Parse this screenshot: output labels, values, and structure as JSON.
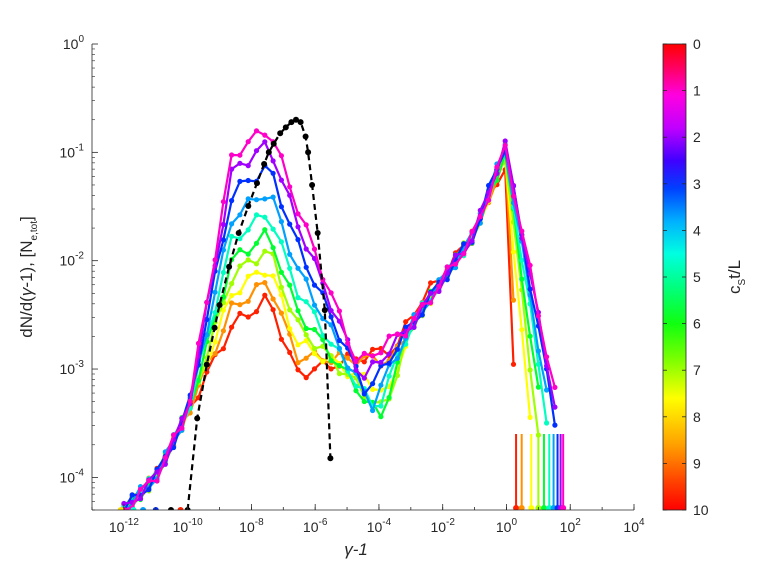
{
  "chart_data": {
    "type": "line",
    "xscale": "log",
    "yscale": "log",
    "xlim": [
      1e-13,
      10000
    ],
    "ylim": [
      5e-05,
      1
    ],
    "xlabel": "γ-1",
    "ylabel": "dN/d(γ-1), [N_e,tot]",
    "x_ticks": [
      {
        "base": "10",
        "exp": "-12",
        "value": 1e-12
      },
      {
        "base": "10",
        "exp": "-10",
        "value": 1e-10
      },
      {
        "base": "10",
        "exp": "-8",
        "value": 1e-08
      },
      {
        "base": "10",
        "exp": "-6",
        "value": 1e-06
      },
      {
        "base": "10",
        "exp": "-4",
        "value": 0.0001
      },
      {
        "base": "10",
        "exp": "-2",
        "value": 0.01
      },
      {
        "base": "10",
        "exp": "0",
        "value": 1
      },
      {
        "base": "10",
        "exp": "2",
        "value": 100
      },
      {
        "base": "10",
        "exp": "4",
        "value": 10000
      }
    ],
    "y_ticks": [
      {
        "base": "10",
        "exp": "0",
        "value": 1
      },
      {
        "base": "10",
        "exp": "-1",
        "value": 0.1
      },
      {
        "base": "10",
        "exp": "-2",
        "value": 0.01
      },
      {
        "base": "10",
        "exp": "-3",
        "value": 0.001
      },
      {
        "base": "10",
        "exp": "-4",
        "value": 0.0001
      }
    ],
    "grid": false,
    "colorbar": {
      "label": "c_S t/L",
      "label_main": "c",
      "label_sub": "S",
      "label_rest": "t/L",
      "range": [
        0,
        10
      ],
      "direction": "0 at top, 10 at bottom",
      "ticks": [
        "0",
        "1",
        "2",
        "3",
        "4",
        "5",
        "6",
        "7",
        "8",
        "9",
        "10"
      ],
      "colormap": "hsv (red → magenta → blue → cyan → green → yellow → orange → red)"
    },
    "reference_series": {
      "name": "t = 0",
      "style": "black dashed with markers",
      "color": "#000000",
      "x": [
        1e-10,
        2e-10,
        4e-10,
        7e-10,
        1e-09,
        2e-09,
        4e-09,
        8e-09,
        1.5e-08,
        2.5e-08,
        3.5e-08,
        5e-08,
        8e-08,
        1.2e-07,
        1.8e-07,
        2.5e-07,
        3.5e-07,
        5e-07,
        6e-07,
        8e-07,
        1.2e-06,
        2e-06,
        3e-06
      ],
      "y": [
        5e-05,
        0.00035,
        0.0011,
        0.0024,
        0.0039,
        0.0088,
        0.018,
        0.032,
        0.052,
        0.078,
        0.1,
        0.12,
        0.15,
        0.17,
        0.19,
        0.2,
        0.19,
        0.14,
        0.1,
        0.05,
        0.018,
        0.0035,
        0.00015
      ]
    },
    "low_energy_start_points": {
      "x": [
        8e-13,
        2e-12,
        4e-12,
        1e-11,
        3e-11,
        6e-11
      ],
      "y": [
        5e-05,
        5e-05,
        5e-05,
        5e-05,
        5e-05,
        5e-05
      ]
    },
    "series": [
      {
        "t": 1,
        "color": "#ff00c8",
        "peak1": 0.17,
        "dip": 0.0011,
        "peak2": 0.11,
        "cutoff": 60
      },
      {
        "t": 2,
        "color": "#a000ff",
        "peak1": 0.12,
        "dip": 0.0008,
        "peak2": 0.12,
        "cutoff": 50
      },
      {
        "t": 3,
        "color": "#0030ff",
        "peak1": 0.075,
        "dip": 0.0006,
        "peak2": 0.12,
        "cutoff": 40
      },
      {
        "t": 4,
        "color": "#00a0ff",
        "peak1": 0.045,
        "dip": 0.00045,
        "peak2": 0.11,
        "cutoff": 30
      },
      {
        "t": 5,
        "color": "#00ffc0",
        "peak1": 0.028,
        "dip": 0.0004,
        "peak2": 0.11,
        "cutoff": 22
      },
      {
        "t": 6,
        "color": "#00ff30",
        "peak1": 0.018,
        "dip": 0.00035,
        "peak2": 0.1,
        "cutoff": 15
      },
      {
        "t": 7,
        "color": "#a0ff00",
        "peak1": 0.013,
        "dip": 0.0004,
        "peak2": 0.1,
        "cutoff": 10
      },
      {
        "t": 8,
        "color": "#ffff00",
        "peak1": 0.009,
        "dip": 0.0006,
        "peak2": 0.095,
        "cutoff": 6
      },
      {
        "t": 9,
        "color": "#ff9000",
        "peak1": 0.0065,
        "dip": 0.0012,
        "peak2": 0.09,
        "cutoff": 3
      },
      {
        "t": 10,
        "color": "#ff2000",
        "peak1": 0.0045,
        "dip": 0.0016,
        "peak2": 0.085,
        "cutoff": 2
      }
    ]
  }
}
